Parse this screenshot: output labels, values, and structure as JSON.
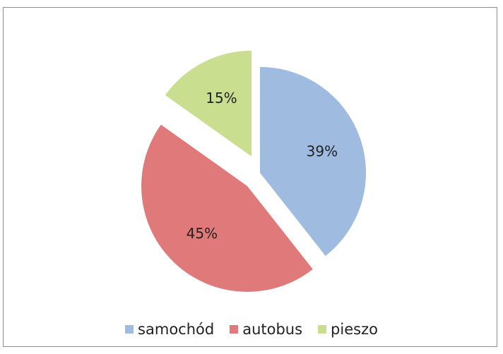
{
  "chart_data": {
    "type": "pie",
    "title": "",
    "legend_position": "bottom",
    "slices": [
      {
        "label": "samochód",
        "value": 39,
        "display": "39%",
        "color": "#9fbce0",
        "exploded": false
      },
      {
        "label": "autobus",
        "value": 45,
        "display": "45%",
        "color": "#e07a7a",
        "exploded": true
      },
      {
        "label": "pieszo",
        "value": 15,
        "display": "15%",
        "color": "#c9de8f",
        "exploded": true
      }
    ]
  }
}
